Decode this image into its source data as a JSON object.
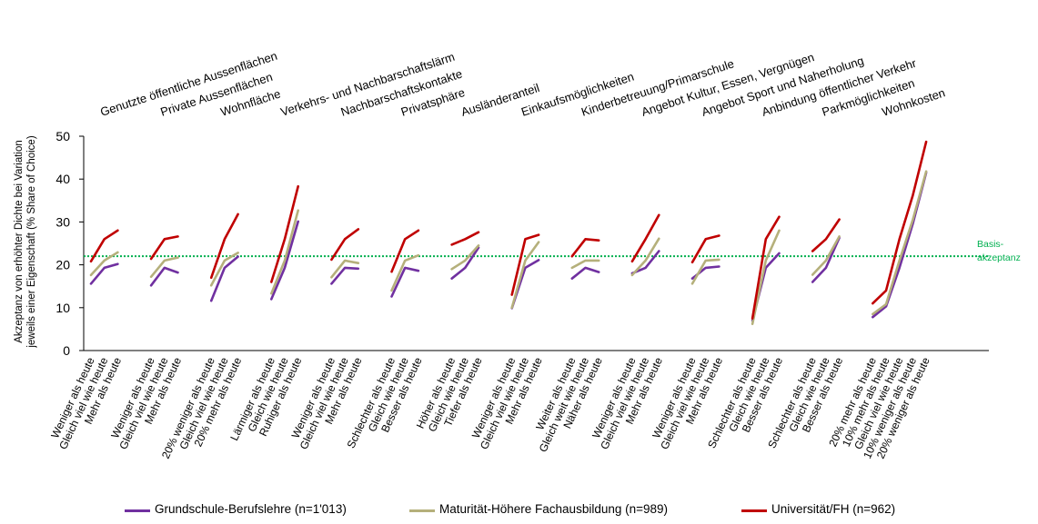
{
  "chart_data": {
    "type": "line",
    "ylabel_line1": "Akzeptanz von erhöhter Dichte bei Variation",
    "ylabel_line2": "jeweils einer Eigenschaft (% Share of Choice)",
    "ylim": [
      0,
      50
    ],
    "yticks": [
      0,
      10,
      20,
      30,
      40,
      50
    ],
    "grid": false,
    "legend_position": "bottom",
    "reference_line": {
      "value": 22,
      "label_line1": "Basis-",
      "label_line2": "akzeptanz",
      "color": "#00b050"
    },
    "groups": [
      {
        "name": "Genutzte öffentliche Aussenflächen",
        "levels": [
          "Weniger als heute",
          "Gleich viel wie heute",
          "Mehr als heute"
        ],
        "values": {
          "grundschule": [
            15.6,
            19.3,
            20.2
          ],
          "maturitaet": [
            17.6,
            21.0,
            22.9
          ],
          "universitaet": [
            20.8,
            26.0,
            28.0
          ]
        }
      },
      {
        "name": "Private Aussenflächen",
        "levels": [
          "Weniger als heute",
          "Gleich viel wie heute",
          "Mehr als heute"
        ],
        "values": {
          "grundschule": [
            15.2,
            19.3,
            18.2
          ],
          "maturitaet": [
            17.2,
            21.0,
            21.7
          ],
          "universitaet": [
            21.4,
            26.0,
            26.6
          ]
        }
      },
      {
        "name": "Wohnfläche",
        "levels": [
          "20% weniger als heute",
          "Gleich viel wie heute",
          "20% mehr als heute"
        ],
        "values": {
          "grundschule": [
            11.6,
            19.3,
            21.9
          ],
          "maturitaet": [
            15.2,
            21.0,
            22.8
          ],
          "universitaet": [
            17.0,
            26.0,
            31.8
          ]
        }
      },
      {
        "name": "Verkehrs- und Nachbarschaftslärm",
        "levels": [
          "Lärmiger als heute",
          "Gleich wie heute",
          "Ruhiger als heute"
        ],
        "values": {
          "grundschule": [
            12.0,
            19.3,
            30.1
          ],
          "maturitaet": [
            13.3,
            21.0,
            32.7
          ],
          "universitaet": [
            16.0,
            26.0,
            38.3
          ]
        }
      },
      {
        "name": "Nachbarschaftskontakte",
        "levels": [
          "Weniger als heute",
          "Gleich viel wie heute",
          "Mehr als heute"
        ],
        "values": {
          "grundschule": [
            15.6,
            19.3,
            19.1
          ],
          "maturitaet": [
            17.1,
            21.0,
            20.4
          ],
          "universitaet": [
            21.2,
            26.0,
            28.3
          ]
        }
      },
      {
        "name": "Privatsphäre",
        "levels": [
          "Schlechter als heute",
          "Gleich wie heute",
          "Besser als heute"
        ],
        "values": {
          "grundschule": [
            12.6,
            19.3,
            18.6
          ],
          "maturitaet": [
            14.0,
            21.0,
            22.2
          ],
          "universitaet": [
            18.4,
            26.0,
            28.0
          ]
        }
      },
      {
        "name": "Ausländeranteil",
        "levels": [
          "Höher als heute",
          "Gleich wie heute",
          "Tiefer als heute"
        ],
        "values": {
          "grundschule": [
            16.8,
            19.3,
            24.0
          ],
          "maturitaet": [
            19.0,
            21.0,
            24.5
          ],
          "universitaet": [
            24.7,
            26.0,
            27.6
          ]
        }
      },
      {
        "name": "Einkaufsmöglichkeiten",
        "levels": [
          "Weniger als heute",
          "Gleich viel wie heute",
          "Mehr als heute"
        ],
        "values": {
          "grundschule": [
            9.9,
            19.3,
            21.1
          ],
          "maturitaet": [
            10.0,
            21.0,
            25.3
          ],
          "universitaet": [
            13.0,
            26.0,
            27.0
          ]
        }
      },
      {
        "name": "Kinderbetreuung/Primarschule",
        "levels": [
          "Weiter als heute",
          "Gleich weit wie heute",
          "Näher als heute"
        ],
        "values": {
          "grundschule": [
            16.8,
            19.3,
            18.3
          ],
          "maturitaet": [
            19.3,
            21.0,
            21.0
          ],
          "universitaet": [
            22.0,
            26.0,
            25.7
          ]
        }
      },
      {
        "name": "Angebot Kultur, Essen, Vergnügen",
        "levels": [
          "Weniger als heute",
          "Gleich viel wie heute",
          "Mehr als heute"
        ],
        "values": {
          "grundschule": [
            18.0,
            19.3,
            23.2
          ],
          "maturitaet": [
            17.6,
            21.0,
            26.1
          ],
          "universitaet": [
            20.8,
            26.0,
            31.6
          ]
        }
      },
      {
        "name": "Angebot Sport und Naherholung",
        "levels": [
          "Weniger als heute",
          "Gleich viel wie heute",
          "Mehr als heute"
        ],
        "values": {
          "grundschule": [
            16.8,
            19.3,
            19.6
          ],
          "maturitaet": [
            15.6,
            21.0,
            21.2
          ],
          "universitaet": [
            20.6,
            26.0,
            26.8
          ]
        }
      },
      {
        "name": "Anbindung öffentlicher Verkehr",
        "levels": [
          "Schlechter als heute",
          "Gleich wie heute",
          "Besser als heute"
        ],
        "values": {
          "grundschule": [
            7.0,
            19.3,
            22.7
          ],
          "maturitaet": [
            6.2,
            21.0,
            28.0
          ],
          "universitaet": [
            7.5,
            26.0,
            31.2
          ]
        }
      },
      {
        "name": "Parkmöglichkeiten",
        "levels": [
          "Schlechter als heute",
          "Gleich wie heute",
          "Besser als heute"
        ],
        "values": {
          "grundschule": [
            16.0,
            19.3,
            26.3
          ],
          "maturitaet": [
            17.7,
            21.0,
            26.6
          ],
          "universitaet": [
            23.2,
            26.0,
            30.6
          ]
        }
      },
      {
        "name": "Wohnkosten",
        "levels": [
          "20% mehr als heute",
          "10% mehr als heute",
          "Gleich viel wie heute",
          "10% weniger als heute",
          "20% weniger als heute"
        ],
        "values": {
          "grundschule": [
            7.8,
            10.3,
            19.3,
            29.6,
            41.5
          ],
          "maturitaet": [
            8.5,
            10.8,
            21.0,
            30.5,
            41.8
          ],
          "universitaet": [
            11.0,
            14.0,
            26.0,
            36.2,
            48.7
          ]
        }
      }
    ],
    "series": [
      {
        "key": "grundschule",
        "name": "Grundschule-Berufslehre (n=1'013)",
        "color": "#7030a0"
      },
      {
        "key": "maturitaet",
        "name": "Maturität-Höhere Fachausbildung (n=989)",
        "color": "#b5b07b"
      },
      {
        "key": "universitaet",
        "name": "Universität/FH (n=962)",
        "color": "#c00000"
      }
    ]
  }
}
